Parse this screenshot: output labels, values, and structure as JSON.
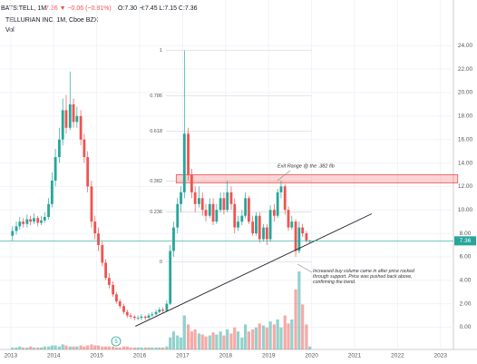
{
  "header": {
    "symbol": "BATS:TELL, 1M",
    "change": "7.36 ▼ −0.06 (−0.81%)",
    "ohlc": "O:7.30 H:7.45 L:7.15 C:7.36",
    "name": "TELLURIAN INC, 1M, Cboe BZX",
    "volume_label": "Vol"
  },
  "chart_data": {
    "type": "candlestick",
    "x": [
      2013.04,
      2013.13,
      2013.21,
      2013.29,
      2013.38,
      2013.46,
      2013.54,
      2013.63,
      2013.71,
      2013.79,
      2013.88,
      2013.96,
      2014.04,
      2014.13,
      2014.21,
      2014.29,
      2014.38,
      2014.46,
      2014.54,
      2014.63,
      2014.71,
      2014.79,
      2014.88,
      2014.96,
      2015.04,
      2015.13,
      2015.21,
      2015.29,
      2015.38,
      2015.46,
      2015.54,
      2015.63,
      2015.71,
      2015.79,
      2015.88,
      2015.96,
      2016.04,
      2016.13,
      2016.21,
      2016.29,
      2016.38,
      2016.46,
      2016.54,
      2016.63,
      2016.71,
      2016.79,
      2016.88,
      2016.96,
      2017.04,
      2017.13,
      2017.21,
      2017.29,
      2017.38,
      2017.46,
      2017.54,
      2017.63,
      2017.71,
      2017.79,
      2017.88,
      2017.96,
      2018.04,
      2018.13,
      2018.21,
      2018.29,
      2018.38,
      2018.46,
      2018.54,
      2018.63,
      2018.71,
      2018.79,
      2018.88,
      2018.96,
      2019.04,
      2019.13,
      2019.21,
      2019.29,
      2019.38,
      2019.46,
      2019.54,
      2019.63,
      2019.71,
      2019.79,
      2019.88,
      2019.96
    ],
    "open": [
      7.8,
      8.2,
      8.6,
      9.0,
      8.8,
      9.2,
      9.0,
      9.3,
      8.9,
      9.1,
      9.4,
      10.5,
      12.5,
      14.5,
      16.0,
      18.5,
      17.0,
      19.0,
      17.5,
      18.0,
      16.0,
      14.5,
      12.0,
      9.0,
      8.0,
      7.0,
      5.5,
      4.2,
      3.6,
      2.8,
      2.2,
      1.8,
      1.3,
      1.0,
      0.9,
      0.8,
      0.8,
      0.9,
      0.8,
      1.0,
      1.1,
      1.3,
      1.5,
      1.4,
      2.0,
      6.5,
      8.5,
      10.5,
      11.5,
      16.5,
      13.0,
      11.5,
      10.5,
      11.0,
      10.0,
      9.5,
      10.5,
      9.0,
      10.0,
      11.0,
      10.0,
      11.5,
      10.5,
      8.5,
      9.0,
      9.5,
      11.0,
      9.0,
      8.0,
      9.5,
      7.5,
      8.5,
      7.5,
      10.0,
      9.5,
      11.5,
      12.0,
      10.0,
      8.5,
      9.0,
      6.5,
      8.5,
      8.0,
      7.3
    ],
    "high": [
      8.6,
      9.0,
      9.4,
      9.3,
      9.6,
      9.5,
      9.7,
      9.5,
      9.5,
      9.8,
      11.0,
      13.2,
      15.2,
      17.0,
      19.5,
      19.8,
      21.8,
      19.5,
      18.8,
      18.5,
      16.5,
      15.0,
      12.5,
      9.5,
      8.5,
      7.3,
      5.8,
      4.6,
      3.9,
      3.0,
      2.4,
      2.0,
      1.5,
      1.2,
      1.0,
      1.0,
      1.1,
      1.0,
      1.2,
      1.3,
      1.5,
      1.7,
      1.7,
      2.3,
      7.0,
      9.0,
      11.0,
      12.0,
      23.6,
      17.0,
      13.5,
      12.0,
      12.0,
      11.5,
      10.5,
      11.0,
      11.0,
      10.5,
      11.5,
      11.5,
      12.5,
      12.0,
      11.0,
      9.5,
      10.0,
      11.5,
      11.2,
      9.5,
      9.8,
      9.8,
      8.8,
      8.8,
      10.4,
      10.5,
      11.8,
      12.5,
      12.2,
      10.3,
      9.5,
      9.2,
      9.0,
      8.8,
      8.2,
      7.45
    ],
    "low": [
      7.4,
      7.9,
      8.3,
      8.5,
      8.5,
      8.7,
      8.8,
      8.6,
      8.7,
      8.9,
      9.2,
      10.2,
      12.0,
      14.0,
      15.5,
      16.5,
      16.8,
      17.0,
      17.0,
      15.5,
      14.0,
      11.5,
      8.5,
      7.5,
      6.5,
      5.2,
      4.0,
      3.3,
      2.6,
      2.0,
      1.6,
      1.1,
      0.8,
      0.7,
      0.6,
      0.6,
      0.6,
      0.6,
      0.7,
      0.9,
      1.0,
      1.2,
      1.2,
      1.3,
      1.9,
      6.0,
      8.0,
      9.8,
      11.0,
      12.5,
      11.0,
      9.8,
      10.2,
      9.5,
      9.0,
      9.3,
      8.7,
      8.8,
      9.8,
      9.6,
      9.8,
      10.0,
      8.0,
      8.2,
      8.7,
      9.3,
      8.8,
      7.8,
      7.8,
      7.2,
      7.3,
      7.0,
      7.3,
      9.0,
      9.3,
      11.0,
      9.6,
      8.2,
      8.3,
      6.0,
      6.3,
      7.7,
      7.2,
      7.15
    ],
    "close": [
      8.2,
      8.6,
      9.0,
      8.8,
      9.2,
      9.0,
      9.3,
      8.9,
      9.1,
      9.4,
      10.5,
      12.5,
      14.5,
      16.0,
      18.5,
      17.0,
      19.0,
      17.5,
      18.0,
      16.0,
      14.5,
      12.0,
      9.0,
      8.0,
      7.0,
      5.5,
      4.2,
      3.6,
      2.8,
      2.2,
      1.8,
      1.3,
      1.0,
      0.9,
      0.8,
      0.8,
      0.9,
      0.8,
      1.0,
      1.1,
      1.3,
      1.5,
      1.4,
      2.0,
      6.5,
      8.5,
      10.5,
      11.5,
      16.5,
      13.0,
      11.5,
      10.5,
      11.0,
      10.0,
      9.5,
      10.5,
      9.0,
      10.0,
      11.0,
      10.0,
      11.5,
      10.5,
      8.5,
      9.0,
      9.5,
      11.0,
      9.0,
      8.0,
      9.5,
      7.5,
      8.5,
      7.5,
      10.0,
      9.5,
      11.5,
      12.0,
      10.0,
      8.5,
      9.0,
      6.5,
      8.5,
      8.0,
      7.4,
      7.36
    ],
    "volume": [
      2,
      2,
      3,
      2,
      2,
      3,
      2,
      2,
      2,
      3,
      3,
      4,
      4,
      3,
      5,
      4,
      3,
      3,
      3,
      4,
      3,
      4,
      5,
      4,
      4,
      3,
      3,
      3,
      3,
      2,
      2,
      3,
      3,
      2,
      2,
      2,
      2,
      2,
      2,
      2,
      2,
      2,
      2,
      3,
      12,
      18,
      14,
      12,
      34,
      25,
      18,
      20,
      16,
      15,
      13,
      14,
      17,
      15,
      18,
      14,
      20,
      16,
      22,
      18,
      12,
      25,
      18,
      20,
      22,
      26,
      24,
      22,
      28,
      25,
      30,
      22,
      34,
      26,
      30,
      60,
      78,
      45,
      25,
      3
    ],
    "up_color": "#26a69a",
    "down_color": "#ef5350",
    "xlim": [
      2012.75,
      2023.3
    ],
    "xticks": [
      2013,
      2014,
      2015,
      2016,
      2017,
      2018,
      2019,
      2020,
      2021,
      2022,
      2023
    ],
    "ylim": [
      -1.9,
      24.8
    ],
    "yticks": [
      {
        "value": 0,
        "label": "0.00"
      },
      {
        "value": 2,
        "label": "2.00"
      },
      {
        "value": 4,
        "label": "4.00"
      },
      {
        "value": 6,
        "label": "6.00"
      },
      {
        "value": 8,
        "label": "8.00"
      },
      {
        "value": 10,
        "label": "10.00"
      },
      {
        "value": 12,
        "label": "12.00"
      },
      {
        "value": 14,
        "label": "14.00"
      },
      {
        "value": 16,
        "label": "16.00"
      },
      {
        "value": 18,
        "label": "18.00"
      },
      {
        "value": 20,
        "label": "20.00"
      },
      {
        "value": 22,
        "label": "22.00"
      },
      {
        "value": 24,
        "label": "24.00"
      }
    ],
    "grid": true,
    "last_price": 7.36,
    "last_price_color": "#26a69a",
    "fib_levels": [
      {
        "ratio": 1,
        "price": 23.6
      },
      {
        "ratio": 0.786,
        "price": 19.74
      },
      {
        "ratio": 0.618,
        "price": 16.71
      },
      {
        "ratio": 0.382,
        "price": 12.46
      },
      {
        "ratio": 0.236,
        "price": 9.83
      },
      {
        "ratio": 0,
        "price": 5.57
      }
    ],
    "fib_x": [
      2016.4,
      2020.0
    ],
    "exit_box": {
      "x": [
        2016.85,
        2023.4
      ],
      "y": [
        12.3,
        13.0
      ],
      "label": "Exit Range @ the .382 fib"
    },
    "trendline": {
      "x": [
        2015.9,
        2021.4
      ],
      "y": [
        0.08,
        9.67
      ]
    },
    "volume_note": "Increased buy volume came in after price rocked through support. Price was pushed back above, confirming the trend.",
    "event_marker": "5"
  }
}
